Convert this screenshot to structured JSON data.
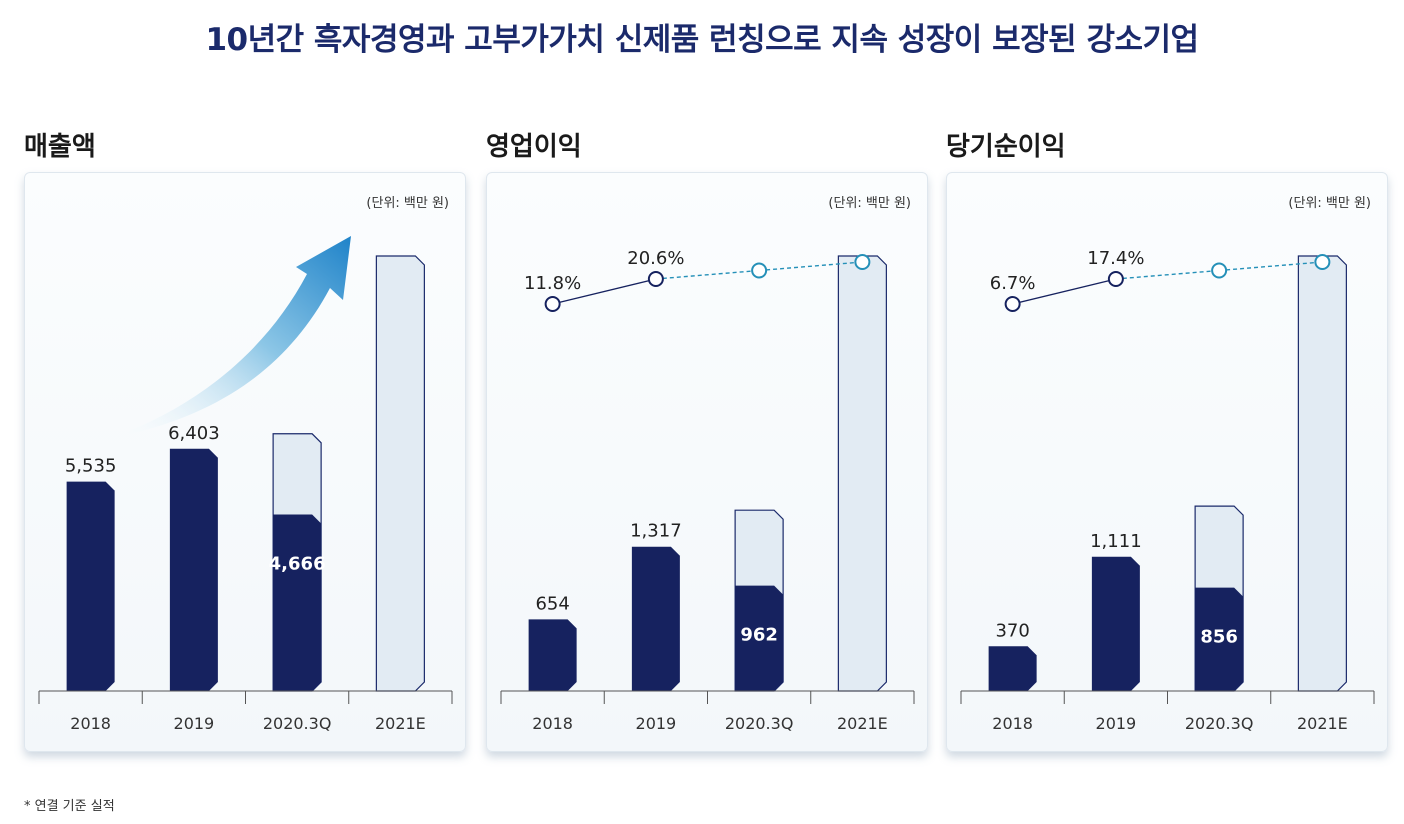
{
  "title": "10년간 흑자경영과 고부가가치 신제품 런칭으로 지속 성장이 보장된 강소기업",
  "footnote": "* 연결 기준 실적",
  "colors": {
    "bar_actual": "#16225f",
    "bar_estimate": "#e2ebf3",
    "bar_estimate_border": "#1b2a6b",
    "line_actual": "#16225f",
    "line_estimate": "#2590b8",
    "title": "#1b2a6b"
  },
  "chart_data": [
    {
      "type": "bar",
      "title": "매출액",
      "unit": "(단위: 백만 원)",
      "categories": [
        "2018",
        "2019",
        "2020.3Q",
        "2021E"
      ],
      "series": [
        {
          "values": [
            5535,
            6403,
            4666,
            null
          ]
        }
      ],
      "data_labels": [
        "5,535",
        "6,403",
        "4,666",
        ""
      ],
      "estimate_values": [
        null,
        null,
        6800,
        11500
      ],
      "ylim": [
        0,
        11500
      ],
      "decoration": "growth-arrow"
    },
    {
      "type": "bar",
      "title": "영업이익",
      "unit": "(단위: 백만 원)",
      "categories": [
        "2018",
        "2019",
        "2020.3Q",
        "2021E"
      ],
      "series": [
        {
          "values": [
            654,
            1317,
            962,
            null
          ]
        }
      ],
      "data_labels": [
        "654",
        "1,317",
        "962",
        ""
      ],
      "estimate_values": [
        null,
        null,
        1650,
        3970
      ],
      "ylim": [
        0,
        3970
      ],
      "margin_line": {
        "values": [
          11.8,
          20.6,
          null,
          null
        ],
        "labels": [
          "11.8%",
          "20.6%",
          "",
          ""
        ],
        "estimate_points": [
          null,
          null,
          1,
          1
        ]
      }
    },
    {
      "type": "bar",
      "title": "당기순이익",
      "unit": "(단위: 백만 원)",
      "categories": [
        "2018",
        "2019",
        "2020.3Q",
        "2021E"
      ],
      "series": [
        {
          "values": [
            370,
            1111,
            856,
            null
          ]
        }
      ],
      "data_labels": [
        "370",
        "1,111",
        "856",
        ""
      ],
      "estimate_values": [
        null,
        null,
        1530,
        3600
      ],
      "ylim": [
        0,
        3600
      ],
      "margin_line": {
        "values": [
          6.7,
          17.4,
          null,
          null
        ],
        "labels": [
          "6.7%",
          "17.4%",
          "",
          ""
        ],
        "estimate_points": [
          null,
          null,
          1,
          1
        ]
      }
    }
  ]
}
